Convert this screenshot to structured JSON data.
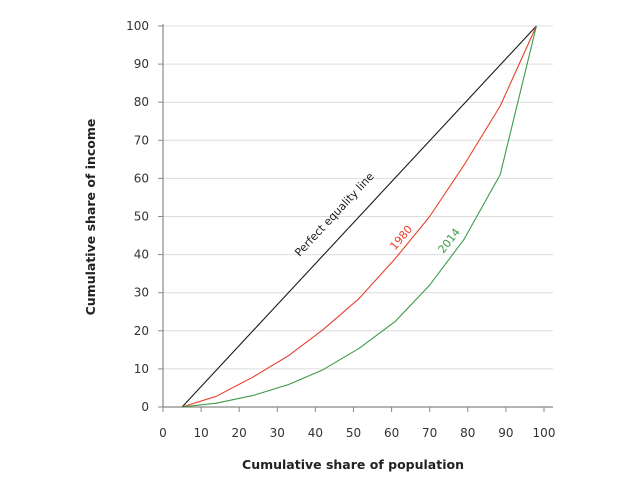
{
  "chart_data": {
    "type": "line",
    "title": "",
    "xlabel": "Cumulative share of population",
    "ylabel": "Cumulative share of income",
    "xlim": [
      0,
      100
    ],
    "ylim": [
      0,
      100
    ],
    "xticks": [
      "0",
      "10",
      "20",
      "30",
      "40",
      "50",
      "60",
      "70",
      "80",
      "90",
      "100"
    ],
    "yticks": [
      "0",
      "10",
      "20",
      "30",
      "40",
      "50",
      "60",
      "70",
      "80",
      "90",
      "100"
    ],
    "grid": "horizontal",
    "series": [
      {
        "name": "Perfect equality line",
        "color": "#1a1a1a",
        "x": [
          5,
          98
        ],
        "y": [
          0,
          100
        ]
      },
      {
        "name": "1980",
        "color": "#e8412b",
        "x": [
          5,
          14,
          23.5,
          33,
          42,
          51.5,
          61,
          70,
          79,
          88.5,
          98
        ],
        "y": [
          0,
          2.8,
          7.8,
          13.5,
          20.3,
          28.5,
          39,
          50,
          63.5,
          79,
          100
        ]
      },
      {
        "name": "2014",
        "color": "#3d9a48",
        "x": [
          5,
          14,
          23.5,
          33,
          42,
          51.5,
          61,
          70,
          79,
          88.5,
          98
        ],
        "y": [
          0,
          1,
          3,
          5.9,
          9.8,
          15.4,
          22.5,
          32,
          44,
          61,
          100
        ]
      }
    ]
  }
}
